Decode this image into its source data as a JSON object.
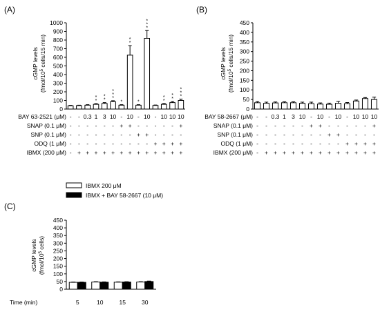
{
  "chart_data": [
    {
      "type": "bar",
      "panel_label": "(A)",
      "ylabel": "cGMP levels (fmol/10⁵ cells/15 min)",
      "ylim": [
        0,
        1000
      ],
      "yticks": [
        0,
        100,
        200,
        300,
        400,
        500,
        600,
        700,
        800,
        900,
        1000
      ],
      "values": [
        38,
        40,
        45,
        55,
        65,
        85,
        45,
        625,
        45,
        820,
        42,
        55,
        75,
        100
      ],
      "errors": [
        5,
        5,
        6,
        8,
        10,
        12,
        6,
        110,
        6,
        90,
        5,
        10,
        12,
        15
      ],
      "stars": [
        "",
        "",
        "",
        "**",
        "**",
        "***",
        "*",
        "**",
        "*",
        "***",
        "",
        "**",
        "**",
        "***"
      ],
      "condition_rows": [
        {
          "label": "BAY 63-2521 (μM)",
          "cells": [
            "-",
            "-",
            "0.3",
            "1",
            "3",
            "10",
            "-",
            "10",
            "-",
            "10",
            "-",
            "10",
            "10",
            "10"
          ]
        },
        {
          "label": "SNAP (0.1 μM)",
          "cells": [
            "-",
            "-",
            "-",
            "-",
            "-",
            "-",
            "+",
            "+",
            "-",
            "-",
            "-",
            "-",
            "-",
            "+"
          ]
        },
        {
          "label": "SNP (0.1 μM)",
          "cells": [
            "-",
            "-",
            "-",
            "-",
            "-",
            "-",
            "-",
            "-",
            "+",
            "+",
            "-",
            "-",
            "-",
            "-"
          ]
        },
        {
          "label": "ODQ (1 μM)",
          "cells": [
            "-",
            "-",
            "-",
            "-",
            "-",
            "-",
            "-",
            "-",
            "-",
            "-",
            "+",
            "+",
            "+",
            "+"
          ]
        },
        {
          "label": "IBMX (200 μM)",
          "cells": [
            "-",
            "+",
            "+",
            "+",
            "+",
            "+",
            "+",
            "+",
            "+",
            "+",
            "+",
            "+",
            "+",
            "+"
          ]
        }
      ]
    },
    {
      "type": "bar",
      "panel_label": "(B)",
      "ylabel": "cGMP levels (fmol/10⁵ cells/15 min)",
      "ylim": [
        0,
        450
      ],
      "yticks": [
        0,
        50,
        100,
        150,
        200,
        250,
        300,
        350,
        400,
        450
      ],
      "values": [
        33,
        30,
        32,
        33,
        33,
        30,
        28,
        26,
        25,
        30,
        28,
        42,
        55,
        50
      ],
      "errors": [
        6,
        6,
        5,
        5,
        5,
        6,
        8,
        6,
        6,
        10,
        6,
        5,
        5,
        12
      ],
      "stars": [],
      "condition_rows": [
        {
          "label": "BAY 58-2667 (μM)",
          "cells": [
            "-",
            "-",
            "0.3",
            "1",
            "3",
            "10",
            "-",
            "10",
            "-",
            "10",
            "-",
            "10",
            "10",
            "10"
          ]
        },
        {
          "label": "SNAP (0.1 μM)",
          "cells": [
            "-",
            "-",
            "-",
            "-",
            "-",
            "-",
            "+",
            "+",
            "-",
            "-",
            "-",
            "-",
            "-",
            "+"
          ]
        },
        {
          "label": "SNP (0.1 μM)",
          "cells": [
            "-",
            "-",
            "-",
            "-",
            "-",
            "-",
            "-",
            "-",
            "+",
            "+",
            "-",
            "-",
            "-",
            "-"
          ]
        },
        {
          "label": "ODQ (1 μM)",
          "cells": [
            "-",
            "-",
            "-",
            "-",
            "-",
            "-",
            "-",
            "-",
            "-",
            "-",
            "+",
            "+",
            "+",
            "+"
          ]
        },
        {
          "label": "IBMX (200 μM)",
          "cells": [
            "-",
            "+",
            "+",
            "+",
            "+",
            "+",
            "+",
            "+",
            "+",
            "+",
            "+",
            "+",
            "+",
            "+"
          ]
        }
      ]
    },
    {
      "type": "bar",
      "panel_label": "(C)",
      "ylabel": "cGMP levels (fmol/10⁵ cells)",
      "ylim": [
        0,
        450
      ],
      "yticks": [
        0,
        50,
        100,
        150,
        200,
        250,
        300,
        350,
        400,
        450
      ],
      "xlabel": "Time (min)",
      "categories": [
        "5",
        "10",
        "15",
        "30"
      ],
      "legend_position": "top",
      "series": [
        {
          "name": "IBMX 200 μM",
          "values": [
            45,
            47,
            46,
            47
          ],
          "errors": [
            2,
            2,
            2,
            2
          ],
          "color": "#ffffff"
        },
        {
          "name": "IBMX + BAY 58-2667 (10 μM)",
          "values": [
            45,
            46,
            47,
            50
          ],
          "errors": [
            2,
            2,
            2,
            3
          ],
          "color": "#000000"
        }
      ]
    }
  ]
}
